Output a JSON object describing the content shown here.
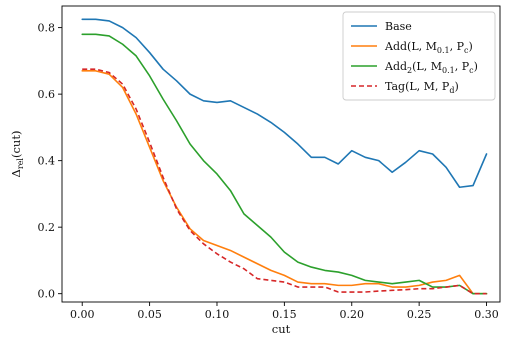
{
  "chart_data": {
    "type": "line",
    "title": "",
    "xlabel": "cut",
    "ylabel": "Δrel(cut)",
    "ylabel_parts": {
      "main": "Δ",
      "sub": "rel",
      "rest": "(cut)"
    },
    "xlim": [
      -0.015,
      0.31
    ],
    "ylim": [
      -0.025,
      0.865
    ],
    "xticks": [
      0.0,
      0.05,
      0.1,
      0.15,
      0.2,
      0.25,
      0.3
    ],
    "xtick_labels": [
      "0.00",
      "0.05",
      "0.10",
      "0.15",
      "0.20",
      "0.25",
      "0.30"
    ],
    "yticks": [
      0.0,
      0.2,
      0.4,
      0.6,
      0.8
    ],
    "ytick_labels": [
      "0.0",
      "0.2",
      "0.4",
      "0.6",
      "0.8"
    ],
    "grid": false,
    "legend_position": "top-right",
    "x": [
      0.0,
      0.01,
      0.02,
      0.03,
      0.04,
      0.05,
      0.06,
      0.07,
      0.08,
      0.09,
      0.1,
      0.11,
      0.12,
      0.13,
      0.14,
      0.15,
      0.16,
      0.17,
      0.18,
      0.19,
      0.2,
      0.21,
      0.22,
      0.23,
      0.24,
      0.25,
      0.26,
      0.27,
      0.28,
      0.29,
      0.3
    ],
    "series": [
      {
        "name": "Base",
        "legend": {
          "main": "Base"
        },
        "color": "#1f77b4",
        "dash": "solid",
        "values": [
          0.825,
          0.825,
          0.82,
          0.8,
          0.77,
          0.725,
          0.675,
          0.64,
          0.6,
          0.58,
          0.575,
          0.58,
          0.56,
          0.54,
          0.515,
          0.485,
          0.45,
          0.41,
          0.41,
          0.39,
          0.43,
          0.41,
          0.4,
          0.365,
          0.395,
          0.43,
          0.42,
          0.38,
          0.32,
          0.325,
          0.42
        ]
      },
      {
        "name": "Add(L, M0.1, Pc)",
        "legend": {
          "main": "Add(L, M",
          "sub1": "0.1",
          "mid": ", P",
          "sub2": "c",
          "end": ")"
        },
        "color": "#ff7f0e",
        "dash": "solid",
        "values": [
          0.67,
          0.67,
          0.66,
          0.62,
          0.54,
          0.44,
          0.34,
          0.26,
          0.195,
          0.16,
          0.145,
          0.13,
          0.11,
          0.09,
          0.07,
          0.055,
          0.035,
          0.03,
          0.03,
          0.025,
          0.025,
          0.03,
          0.03,
          0.02,
          0.02,
          0.025,
          0.035,
          0.04,
          0.055,
          0.0,
          0.0
        ]
      },
      {
        "name": "Add2(L, M0.1, Pc)",
        "legend": {
          "main": "Add",
          "sub0": "2",
          "main2": "(L, M",
          "sub1": "0.1",
          "mid": ", P",
          "sub2": "c",
          "end": ")"
        },
        "color": "#2ca02c",
        "dash": "solid",
        "values": [
          0.78,
          0.78,
          0.775,
          0.75,
          0.715,
          0.655,
          0.585,
          0.52,
          0.45,
          0.4,
          0.36,
          0.31,
          0.24,
          0.205,
          0.17,
          0.125,
          0.095,
          0.08,
          0.07,
          0.065,
          0.055,
          0.04,
          0.035,
          0.03,
          0.035,
          0.04,
          0.02,
          0.02,
          0.025,
          0.0,
          0.0
        ]
      },
      {
        "name": "Tag(L, M, Pd)",
        "legend": {
          "main": "Tag(L, M, P",
          "sub1": "d",
          "end": ")"
        },
        "color": "#d62728",
        "dash": "dashed",
        "values": [
          0.675,
          0.675,
          0.665,
          0.63,
          0.555,
          0.455,
          0.35,
          0.255,
          0.19,
          0.15,
          0.12,
          0.095,
          0.075,
          0.045,
          0.04,
          0.035,
          0.02,
          0.02,
          0.02,
          0.005,
          0.005,
          0.005,
          0.008,
          0.01,
          0.012,
          0.015,
          0.015,
          0.02,
          0.025,
          0.0,
          0.0
        ]
      }
    ]
  }
}
